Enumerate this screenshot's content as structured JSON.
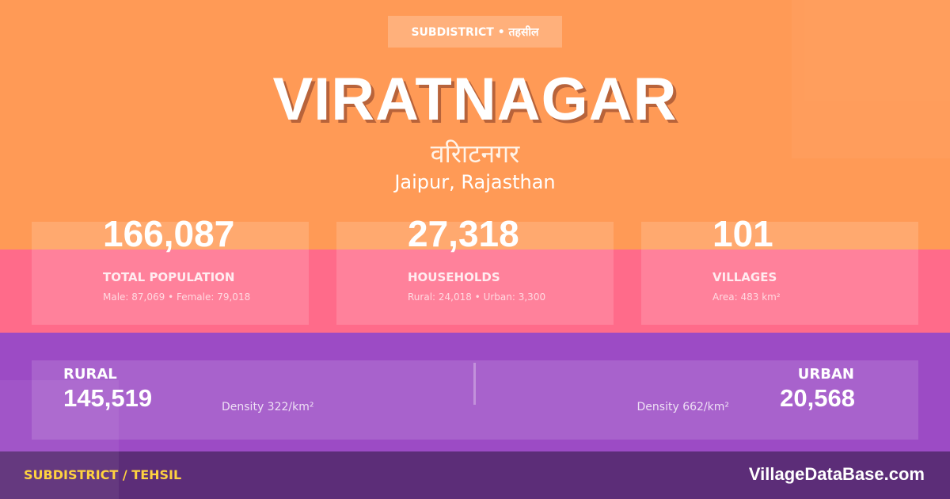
{
  "colors": {
    "top": "#ff9a56",
    "middle": "#ff6b8a",
    "lower": "#9c4bc5",
    "footer": "#5c2d78",
    "accent": "#ffd23f"
  },
  "badge": "SUBDISTRICT • तहसील",
  "title": "VIRATNAGAR",
  "title_hindi": "वरिाटनगर",
  "location": "Jaipur, Rajasthan",
  "stats": [
    {
      "value": "166,087",
      "label": "TOTAL POPULATION",
      "sub": "Male: 87,069 • Female: 79,018"
    },
    {
      "value": "27,318",
      "label": "HOUSEHOLDS",
      "sub": "Rural: 24,018 • Urban: 3,300"
    },
    {
      "value": "101",
      "label": "VILLAGES",
      "sub": "Area: 483 km²"
    }
  ],
  "rural": {
    "label": "RURAL",
    "value": "145,519",
    "density": "Density 322/km²"
  },
  "urban": {
    "label": "URBAN",
    "value": "20,568",
    "density": "Density 662/km²"
  },
  "footer": {
    "left": "SUBDISTRICT / TEHSIL",
    "right": "VillageDataBase.com"
  }
}
